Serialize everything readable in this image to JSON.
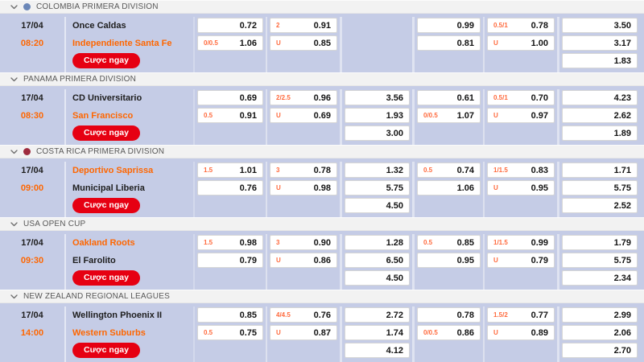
{
  "ui": {
    "bet_button_label": "Cược ngay"
  },
  "colors": {
    "accent_orange": "#ff6600",
    "label_orange": "#ff6a3d",
    "button_red": "#e60012",
    "row_background": "#c5cce6",
    "header_background": "#f2f2f2"
  },
  "sections": [
    {
      "league": "COLOMBIA PRIMERA DIVISION",
      "icon": {
        "name": "trophy-icon",
        "color": "#6b87b8"
      },
      "match": {
        "date": "17/04",
        "time": "08:20",
        "home": {
          "name": "Once Caldas",
          "highlight": false
        },
        "away": {
          "name": "Independiente Santa Fe",
          "highlight": true
        },
        "odds": [
          [
            {
              "label": "",
              "value": "0.72"
            },
            {
              "label": "0/0.5",
              "value": "1.06"
            },
            null
          ],
          [
            {
              "label": "2",
              "value": "0.91"
            },
            {
              "label": "U",
              "value": "0.85"
            },
            null
          ],
          [
            null,
            null,
            null
          ],
          [
            {
              "label": "",
              "value": "0.99"
            },
            {
              "label": "",
              "value": "0.81"
            },
            null
          ],
          [
            {
              "label": "0.5/1",
              "value": "0.78"
            },
            {
              "label": "U",
              "value": "1.00"
            },
            null
          ],
          [
            {
              "label": "",
              "value": "3.50"
            },
            {
              "label": "",
              "value": "3.17"
            },
            {
              "label": "",
              "value": "1.83"
            }
          ]
        ]
      }
    },
    {
      "league": "PANAMA PRIMERA DIVISION",
      "icon": null,
      "match": {
        "date": "17/04",
        "time": "08:30",
        "home": {
          "name": "CD Universitario",
          "highlight": false
        },
        "away": {
          "name": "San Francisco",
          "highlight": true
        },
        "odds": [
          [
            {
              "label": "",
              "value": "0.69"
            },
            {
              "label": "0.5",
              "value": "0.91"
            },
            null
          ],
          [
            {
              "label": "2/2.5",
              "value": "0.96"
            },
            {
              "label": "U",
              "value": "0.69"
            },
            null
          ],
          [
            {
              "label": "",
              "value": "3.56"
            },
            {
              "label": "",
              "value": "1.93"
            },
            {
              "label": "",
              "value": "3.00"
            }
          ],
          [
            {
              "label": "",
              "value": "0.61"
            },
            {
              "label": "0/0.5",
              "value": "1.07"
            },
            null
          ],
          [
            {
              "label": "0.5/1",
              "value": "0.70"
            },
            {
              "label": "U",
              "value": "0.97"
            },
            null
          ],
          [
            {
              "label": "",
              "value": "4.23"
            },
            {
              "label": "",
              "value": "2.62"
            },
            {
              "label": "",
              "value": "1.89"
            }
          ]
        ]
      }
    },
    {
      "league": "COSTA RICA PRIMERA DIVISION",
      "icon": {
        "name": "ball-icon",
        "color": "#9e2b3e"
      },
      "match": {
        "date": "17/04",
        "time": "09:00",
        "home": {
          "name": "Deportivo Saprissa",
          "highlight": true
        },
        "away": {
          "name": "Municipal Liberia",
          "highlight": false
        },
        "odds": [
          [
            {
              "label": "1.5",
              "value": "1.01"
            },
            {
              "label": "",
              "value": "0.76"
            },
            null
          ],
          [
            {
              "label": "3",
              "value": "0.78"
            },
            {
              "label": "U",
              "value": "0.98"
            },
            null
          ],
          [
            {
              "label": "",
              "value": "1.32"
            },
            {
              "label": "",
              "value": "5.75"
            },
            {
              "label": "",
              "value": "4.50"
            }
          ],
          [
            {
              "label": "0.5",
              "value": "0.74"
            },
            {
              "label": "",
              "value": "1.06"
            },
            null
          ],
          [
            {
              "label": "1/1.5",
              "value": "0.83"
            },
            {
              "label": "U",
              "value": "0.95"
            },
            null
          ],
          [
            {
              "label": "",
              "value": "1.71"
            },
            {
              "label": "",
              "value": "5.75"
            },
            {
              "label": "",
              "value": "2.52"
            }
          ]
        ]
      }
    },
    {
      "league": "USA OPEN CUP",
      "icon": null,
      "match": {
        "date": "17/04",
        "time": "09:30",
        "home": {
          "name": "Oakland Roots",
          "highlight": true
        },
        "away": {
          "name": "El Farolito",
          "highlight": false
        },
        "odds": [
          [
            {
              "label": "1.5",
              "value": "0.98"
            },
            {
              "label": "",
              "value": "0.79"
            },
            null
          ],
          [
            {
              "label": "3",
              "value": "0.90"
            },
            {
              "label": "U",
              "value": "0.86"
            },
            null
          ],
          [
            {
              "label": "",
              "value": "1.28"
            },
            {
              "label": "",
              "value": "6.50"
            },
            {
              "label": "",
              "value": "4.50"
            }
          ],
          [
            {
              "label": "0.5",
              "value": "0.85"
            },
            {
              "label": "",
              "value": "0.95"
            },
            null
          ],
          [
            {
              "label": "1/1.5",
              "value": "0.99"
            },
            {
              "label": "U",
              "value": "0.79"
            },
            null
          ],
          [
            {
              "label": "",
              "value": "1.79"
            },
            {
              "label": "",
              "value": "5.75"
            },
            {
              "label": "",
              "value": "2.34"
            }
          ]
        ]
      }
    },
    {
      "league": "NEW ZEALAND REGIONAL LEAGUES",
      "icon": null,
      "match": {
        "date": "17/04",
        "time": "14:00",
        "home": {
          "name": "Wellington Phoenix II",
          "highlight": false
        },
        "away": {
          "name": "Western Suburbs",
          "highlight": true
        },
        "odds": [
          [
            {
              "label": "",
              "value": "0.85"
            },
            {
              "label": "0.5",
              "value": "0.75"
            },
            null
          ],
          [
            {
              "label": "4/4.5",
              "value": "0.76"
            },
            {
              "label": "U",
              "value": "0.87"
            },
            null
          ],
          [
            {
              "label": "",
              "value": "2.72"
            },
            {
              "label": "",
              "value": "1.74"
            },
            {
              "label": "",
              "value": "4.12"
            }
          ],
          [
            {
              "label": "",
              "value": "0.78"
            },
            {
              "label": "0/0.5",
              "value": "0.86"
            },
            null
          ],
          [
            {
              "label": "1.5/2",
              "value": "0.77"
            },
            {
              "label": "U",
              "value": "0.89"
            },
            null
          ],
          [
            {
              "label": "",
              "value": "2.99"
            },
            {
              "label": "",
              "value": "2.06"
            },
            {
              "label": "",
              "value": "2.70"
            }
          ]
        ]
      }
    }
  ]
}
